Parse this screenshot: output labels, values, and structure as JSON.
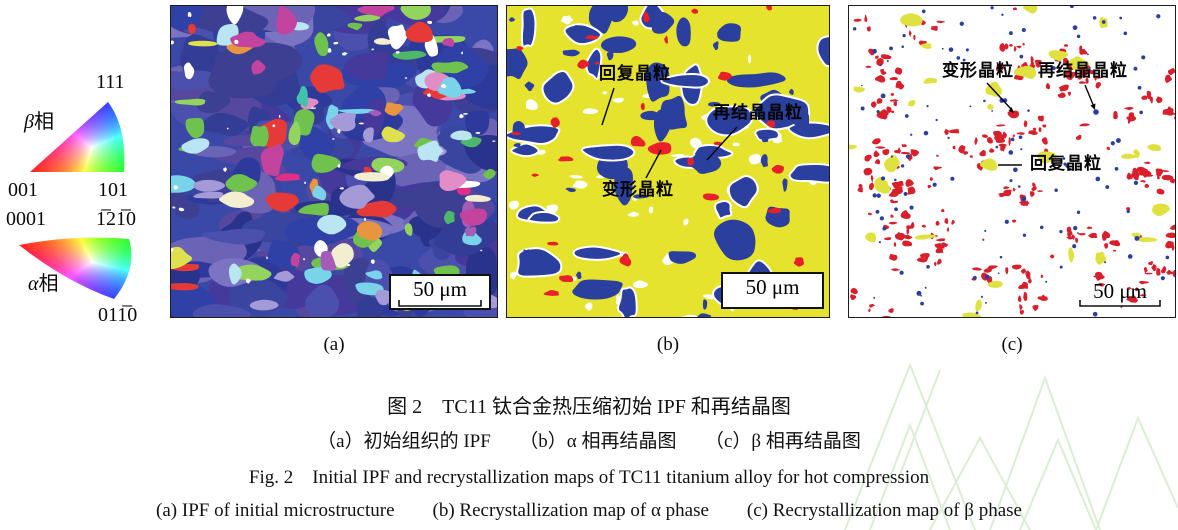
{
  "figure": {
    "caption_zh_title": "图 2　TC11 钛合金热压缩初始 IPF 和再结晶图",
    "caption_zh_sub": "（a）初始组织的 IPF　　（b）α 相再结晶图　　（c）β 相再结晶图",
    "caption_en_title": "Fig. 2　Initial IPF and recrystallization maps of TC11 titanium alloy for hot compression",
    "caption_en_sub": "(a) IPF of initial microstructure　　(b) Recrystallization map of α phase　　(c) Recrystallization map of β phase"
  },
  "legend": {
    "beta": {
      "symbol": "β",
      "phase_word": "相",
      "vertex_top": "111",
      "vertex_bottom_left": "001",
      "vertex_bottom_right": "101",
      "colors": {
        "vertex_top": "#2a35d0",
        "vertex_bottom_left": "#ee2020",
        "vertex_bottom_right": "#1fba1f"
      }
    },
    "alpha": {
      "symbol": "α",
      "phase_word": "相",
      "vertex_left": "0001",
      "vertex_top_right": "1̅21̅0",
      "vertex_bottom": "011̅0",
      "colors": {
        "vertex_left": "#ee2020",
        "vertex_top_right": "#1fba1f",
        "vertex_bottom": "#2a35d0"
      }
    }
  },
  "panels": [
    {
      "label": "(a)",
      "scale_bar": "50 μm",
      "palette": {
        "background": "#3a49a8",
        "matrix": [
          "#2e3a9b",
          "#39459f",
          "#2a338c",
          "#4b50ae",
          "#56489f",
          "#3c3f92",
          "#6b63b5",
          "#2f41a6",
          "#45399b",
          "#7a74c2",
          "#333d95"
        ],
        "grains": [
          "#6fc24d",
          "#6fc24d",
          "#6fc24d",
          "#93d45f",
          "#93d45f",
          "#4db86a",
          "#79d3e9",
          "#79d3e9",
          "#b9e6f2",
          "#e28cc8",
          "#e28cc8",
          "#c2449e",
          "#c2449e",
          "#e12e86",
          "#a55cb8",
          "#e63a38",
          "#e63a38",
          "#dfe04e",
          "#f4eed0",
          "#a49ad8",
          "#a49ad8",
          "#41c3ab",
          "#e8953f",
          "#ffffff"
        ],
        "speck": "#ffffff"
      }
    },
    {
      "label": "(b)",
      "scale_bar": "50 μm",
      "colors": {
        "recovered_yellow": "#e6e32e",
        "recrystallized_blue": "#2b3f9e",
        "deformed_red": "#e8202a",
        "boundary_white": "#ffffff"
      },
      "annotations": [
        {
          "text": "回复晶粒"
        },
        {
          "text": "再结晶晶粒"
        },
        {
          "text": "变形晶粒"
        }
      ]
    },
    {
      "label": "(c)",
      "scale_bar": "50 μm",
      "colors": {
        "background": "#ffffff",
        "deformed_red": "#d8202c",
        "recovered_yellow": "#dfe23e",
        "recrystallized_blue": "#2b3fa0"
      },
      "annotations": [
        {
          "text": "变形晶粒"
        },
        {
          "text": "再结晶晶粒"
        },
        {
          "text": "回复晶粒"
        }
      ]
    }
  ],
  "decoration": {
    "watermark_color": "#cfe9c5"
  }
}
